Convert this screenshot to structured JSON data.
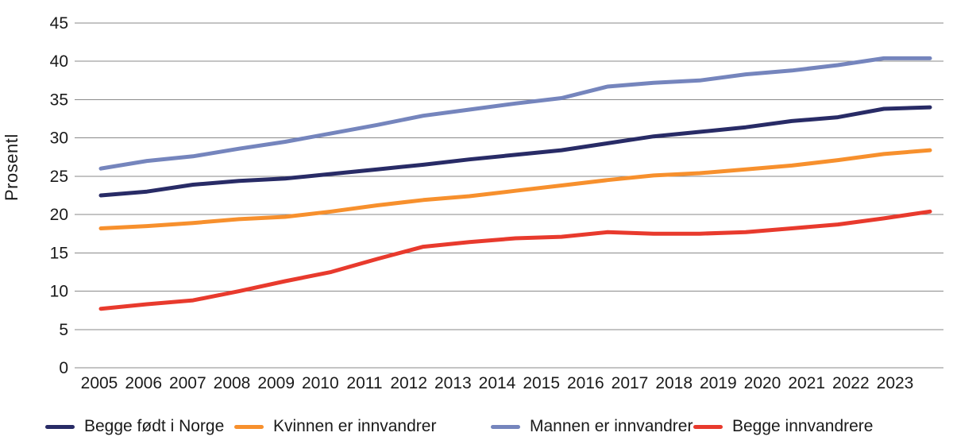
{
  "chart_data": {
    "type": "line",
    "title": "",
    "xlabel": "",
    "ylabel": "Prosentl",
    "ylim": [
      0,
      45
    ],
    "ytick_step": 5,
    "yticks": [
      0,
      5,
      10,
      15,
      20,
      25,
      30,
      35,
      40,
      45
    ],
    "grid": "horizontal",
    "legend_position": "bottom",
    "grid_color": "#8a8a8a",
    "text_color": "#1a1a1a",
    "categories": [
      "2005",
      "2006",
      "2007",
      "2008",
      "2009",
      "2010",
      "2011",
      "2012",
      "2013",
      "2014",
      "2015",
      "2016",
      "2017",
      "2018",
      "2019",
      "2020",
      "2021",
      "2022",
      "2023"
    ],
    "series": [
      {
        "name": "Begge født i Norge",
        "color": "#282b66",
        "values": [
          22.5,
          23.0,
          23.9,
          24.4,
          24.7,
          25.3,
          25.9,
          26.5,
          27.2,
          27.8,
          28.4,
          29.3,
          30.2,
          30.8,
          31.4,
          32.2,
          32.7,
          33.8,
          34.0
        ]
      },
      {
        "name": "Kvinnen er innvandrer",
        "color": "#f7902d",
        "values": [
          18.2,
          18.5,
          18.9,
          19.4,
          19.7,
          20.4,
          21.2,
          21.9,
          22.4,
          23.1,
          23.8,
          24.5,
          25.1,
          25.4,
          25.9,
          26.4,
          27.1,
          27.9,
          28.4
        ]
      },
      {
        "name": "Mannen er innvandrer",
        "color": "#7585bd",
        "values": [
          26.0,
          27.0,
          27.6,
          28.6,
          29.5,
          30.6,
          31.7,
          32.9,
          33.7,
          34.5,
          35.2,
          36.7,
          37.2,
          37.5,
          38.3,
          38.8,
          39.5,
          40.4,
          40.4
        ]
      },
      {
        "name": "Begge innvandrere",
        "color": "#e83a2d",
        "values": [
          7.7,
          8.3,
          8.8,
          10.0,
          11.3,
          12.5,
          14.2,
          15.8,
          16.4,
          16.9,
          17.1,
          17.7,
          17.5,
          17.5,
          17.7,
          18.2,
          18.7,
          19.5,
          20.4
        ]
      }
    ]
  }
}
